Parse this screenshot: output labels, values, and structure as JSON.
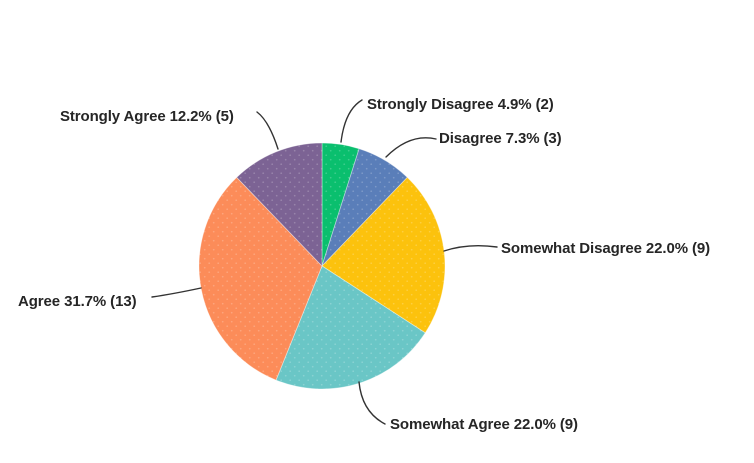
{
  "chart_data": {
    "type": "pie",
    "title": "",
    "legend_position": "none",
    "label_style": "outside-with-leader-lines",
    "start_angle": "12-oclock",
    "direction": "clockwise",
    "slices": [
      {
        "category": "Strongly Disagree",
        "percent": 4.9,
        "count": 2,
        "label": "Strongly Disagree 4.9% (2)",
        "color": "#0abf6e"
      },
      {
        "category": "Disagree",
        "percent": 7.3,
        "count": 3,
        "label": "Disagree 7.3% (3)",
        "color": "#5a7eb9"
      },
      {
        "category": "Somewhat Disagree",
        "percent": 22.0,
        "count": 9,
        "label": "Somewhat Disagree 22.0% (9)",
        "color": "#fcc20d"
      },
      {
        "category": "Somewhat Agree",
        "percent": 22.0,
        "count": 9,
        "label": "Somewhat Agree 22.0% (9)",
        "color": "#6ac6c6"
      },
      {
        "category": "Agree",
        "percent": 31.7,
        "count": 13,
        "label": "Agree 31.7% (13)",
        "color": "#fc8c59"
      },
      {
        "category": "Strongly Agree",
        "percent": 12.2,
        "count": 5,
        "label": "Strongly Agree 12.2% (5)",
        "color": "#7c6394"
      }
    ],
    "leader_line_color": "#333333",
    "text_color": "#262626",
    "background_color": "#ffffff"
  }
}
